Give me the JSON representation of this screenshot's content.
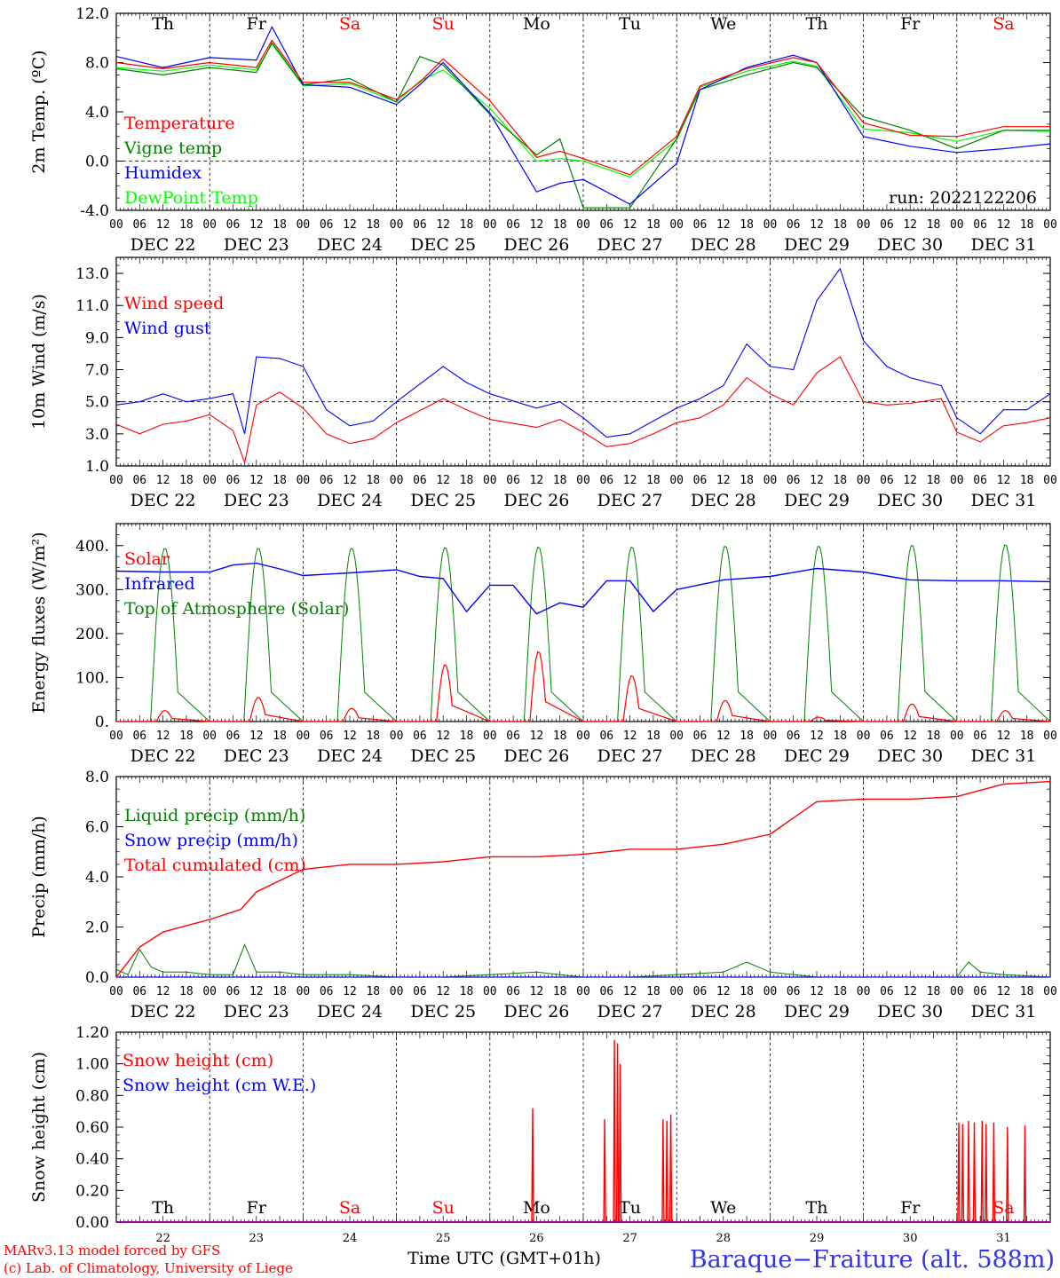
{
  "title": "Baraque−Fraiture (alt. 588m)",
  "credits": [
    "MARv3.13 model forced by GFS",
    "(c) Lab. of Climatology, University of Liege"
  ],
  "x_axis_title": "Time UTC (GMT+01h)",
  "run_label": "run: 2022122206",
  "day_names": [
    "Th",
    "Fr",
    "Sa",
    "Su",
    "Mo",
    "Tu",
    "We",
    "Th",
    "Fr",
    "Sa"
  ],
  "weekend_flags": [
    false,
    false,
    true,
    true,
    false,
    false,
    false,
    false,
    false,
    true
  ],
  "date_labels": [
    "DEC 22",
    "DEC 23",
    "DEC 24",
    "DEC 25",
    "DEC 26",
    "DEC 27",
    "DEC 28",
    "DEC 29",
    "DEC 30",
    "DEC 31"
  ],
  "day_numbers": [
    "22",
    "23",
    "24",
    "25",
    "26",
    "27",
    "28",
    "29",
    "30",
    "31"
  ],
  "hour_ticks": [
    "00",
    "06",
    "12",
    "18"
  ],
  "colors": {
    "red": "#ff0000",
    "green": "#008000",
    "blue": "#0000ff",
    "light_green": "#00ff00",
    "purple": "#a000a0"
  },
  "chart_data": [
    {
      "type": "line",
      "ylabel": "2m Temp. (ºC)",
      "ylim": [
        -4,
        12
      ],
      "ytick_labels": [
        "-4.0",
        "0.0",
        "4.0",
        "8.0",
        "12.0"
      ],
      "reference_line": 0,
      "x_unit": "hours since DEC 22 00 UTC",
      "series": [
        {
          "name": "Temperature",
          "color": "#ff0000",
          "x": [
            0,
            12,
            24,
            36,
            40,
            48,
            60,
            72,
            78,
            84,
            96,
            108,
            114,
            120,
            132,
            144,
            150,
            162,
            174,
            180,
            192,
            204,
            216,
            228,
            240
          ],
          "values": [
            8.0,
            7.5,
            8.0,
            7.6,
            9.8,
            6.4,
            6.4,
            5.0,
            6.4,
            8.3,
            4.9,
            0.3,
            0.8,
            0.2,
            -1.1,
            2.0,
            6.1,
            7.5,
            8.4,
            8.0,
            3.1,
            2.1,
            2.0,
            2.8,
            2.8
          ]
        },
        {
          "name": "Vigne temp",
          "color": "#008000",
          "x": [
            0,
            12,
            24,
            36,
            40,
            48,
            60,
            72,
            78,
            84,
            96,
            108,
            114,
            120,
            132,
            144,
            150,
            162,
            174,
            180,
            192,
            204,
            216,
            228,
            240
          ],
          "values": [
            7.5,
            7.0,
            7.6,
            7.2,
            9.6,
            6.2,
            6.7,
            4.8,
            8.5,
            7.8,
            3.8,
            0.5,
            1.8,
            -3.8,
            -3.8,
            1.8,
            5.8,
            7.0,
            8.0,
            7.6,
            3.6,
            2.5,
            1.0,
            2.5,
            2.5
          ]
        },
        {
          "name": "Humidex",
          "color": "#0000ff",
          "x": [
            0,
            12,
            24,
            36,
            40,
            48,
            60,
            72,
            78,
            84,
            96,
            108,
            114,
            120,
            132,
            144,
            150,
            162,
            174,
            180,
            192,
            204,
            216,
            228,
            240
          ],
          "values": [
            8.5,
            7.6,
            8.4,
            8.2,
            10.9,
            6.2,
            6.0,
            4.6,
            6.2,
            8.0,
            3.9,
            -2.5,
            -1.8,
            -1.5,
            -3.5,
            -0.2,
            5.8,
            7.6,
            8.6,
            8.0,
            2.0,
            1.2,
            0.7,
            1.0,
            1.4
          ]
        },
        {
          "name": "DewPoint Temp",
          "color": "#00ff00",
          "x": [
            0,
            12,
            24,
            36,
            40,
            48,
            60,
            72,
            78,
            84,
            96,
            108,
            114,
            120,
            132,
            144,
            150,
            162,
            174,
            180,
            192,
            204,
            216,
            228,
            240
          ],
          "values": [
            7.6,
            7.3,
            7.8,
            7.4,
            9.5,
            6.1,
            6.3,
            4.8,
            6.5,
            7.4,
            4.3,
            0.0,
            0.2,
            0.0,
            -1.3,
            1.7,
            6.0,
            7.3,
            8.1,
            7.7,
            2.6,
            2.3,
            1.6,
            2.5,
            2.4
          ]
        }
      ]
    },
    {
      "type": "line",
      "ylabel": "10m Wind (m/s)",
      "ylim": [
        1,
        14
      ],
      "ytick_labels": [
        "1.0",
        "3.0",
        "5.0",
        "7.0",
        "9.0",
        "11.0",
        "13.0"
      ],
      "reference_line": 5,
      "x_unit": "hours since DEC 22 00 UTC",
      "series": [
        {
          "name": "Wind speed",
          "color": "#ff0000",
          "x": [
            0,
            6,
            12,
            18,
            24,
            30,
            33,
            36,
            42,
            48,
            54,
            60,
            66,
            72,
            84,
            90,
            96,
            108,
            114,
            120,
            126,
            132,
            138,
            144,
            150,
            156,
            162,
            168,
            174,
            180,
            186,
            192,
            198,
            204,
            212,
            216,
            222,
            228,
            234,
            240
          ],
          "values": [
            3.6,
            3.0,
            3.6,
            3.8,
            4.2,
            3.2,
            1.2,
            4.8,
            5.6,
            4.6,
            3.0,
            2.4,
            2.7,
            3.7,
            5.2,
            4.5,
            3.9,
            3.4,
            3.9,
            3.1,
            2.2,
            2.4,
            3.0,
            3.7,
            4.0,
            4.8,
            6.5,
            5.5,
            4.8,
            6.8,
            7.8,
            5.0,
            4.8,
            4.9,
            5.2,
            3.1,
            2.5,
            3.5,
            3.7,
            4.0
          ]
        },
        {
          "name": "Wind gust",
          "color": "#0000ff",
          "x": [
            0,
            6,
            12,
            18,
            24,
            30,
            33,
            36,
            42,
            48,
            54,
            60,
            66,
            72,
            84,
            90,
            96,
            108,
            114,
            120,
            126,
            132,
            138,
            144,
            150,
            156,
            162,
            168,
            174,
            180,
            186,
            192,
            198,
            204,
            212,
            216,
            222,
            228,
            234,
            240
          ],
          "values": [
            4.8,
            5.0,
            5.5,
            5.0,
            5.2,
            5.5,
            3.0,
            7.8,
            7.7,
            7.2,
            4.5,
            3.5,
            3.8,
            5.0,
            7.2,
            6.2,
            5.5,
            4.6,
            5.0,
            4.0,
            2.8,
            3.0,
            3.8,
            4.6,
            5.2,
            6.0,
            8.6,
            7.2,
            7.0,
            11.3,
            13.3,
            8.8,
            7.2,
            6.5,
            6.0,
            4.0,
            3.0,
            4.5,
            4.5,
            5.5
          ]
        }
      ]
    },
    {
      "type": "line",
      "ylabel": "Energy fluxes (W/m²)",
      "ylim": [
        0,
        450
      ],
      "ytick_labels": [
        "0.",
        "100.",
        "200.",
        "300.",
        "400."
      ],
      "x_unit": "hours since DEC 22 00 UTC",
      "series": [
        {
          "name": "Solar",
          "color": "#ff0000",
          "day_peaks": [
            25,
            55,
            30,
            130,
            160,
            105,
            48,
            10,
            40,
            25
          ]
        },
        {
          "name": "Infrared",
          "color": "#0000ff",
          "x": [
            0,
            12,
            24,
            30,
            36,
            42,
            48,
            60,
            72,
            78,
            84,
            90,
            96,
            102,
            108,
            114,
            120,
            126,
            132,
            138,
            144,
            156,
            168,
            180,
            192,
            204,
            216,
            228,
            240
          ],
          "values": [
            342,
            340,
            340,
            356,
            360,
            347,
            332,
            338,
            345,
            330,
            325,
            250,
            310,
            310,
            245,
            270,
            260,
            320,
            320,
            250,
            300,
            322,
            330,
            348,
            340,
            322,
            320,
            320,
            318
          ]
        },
        {
          "name": "Top of Atmosphere (Solar)",
          "color": "#008000",
          "day_peaks": [
            395,
            395,
            395,
            397,
            398,
            398,
            400,
            400,
            402,
            403
          ]
        }
      ]
    },
    {
      "type": "line",
      "ylabel": "Precip (mm/h)",
      "ylim": [
        0,
        8
      ],
      "ytick_labels": [
        "0.0",
        "2.0",
        "4.0",
        "6.0",
        "8.0"
      ],
      "x_unit": "hours since DEC 22 00 UTC",
      "series": [
        {
          "name": "Liquid precip (mm/h)",
          "color": "#008000",
          "x": [
            0,
            3,
            6,
            9,
            12,
            18,
            24,
            30,
            33,
            36,
            42,
            48,
            60,
            72,
            84,
            96,
            108,
            120,
            132,
            144,
            156,
            162,
            168,
            180,
            192,
            204,
            216,
            219,
            222,
            228,
            240
          ],
          "values": [
            0.3,
            0.1,
            1.1,
            0.4,
            0.2,
            0.2,
            0.1,
            0.1,
            1.3,
            0.2,
            0.2,
            0.1,
            0.1,
            0.0,
            0.0,
            0.1,
            0.2,
            0.0,
            0.0,
            0.1,
            0.2,
            0.6,
            0.2,
            0.0,
            0.0,
            0.0,
            0.0,
            0.6,
            0.2,
            0.1,
            0.0
          ]
        },
        {
          "name": "Snow precip (mm/h)",
          "color": "#0000ff",
          "x": [
            0,
            240
          ],
          "values": [
            0.0,
            0.0
          ]
        },
        {
          "name": "Total cumulated (cm)",
          "color": "#ff0000",
          "x": [
            0,
            6,
            12,
            24,
            32,
            36,
            48,
            60,
            72,
            84,
            96,
            108,
            120,
            132,
            144,
            156,
            168,
            180,
            192,
            204,
            216,
            228,
            240
          ],
          "values": [
            0.0,
            1.2,
            1.8,
            2.3,
            2.7,
            3.4,
            4.3,
            4.5,
            4.5,
            4.6,
            4.8,
            4.8,
            4.9,
            5.1,
            5.1,
            5.3,
            5.7,
            7.0,
            7.1,
            7.1,
            7.2,
            7.7,
            7.8
          ]
        }
      ]
    },
    {
      "type": "line",
      "ylabel": "Snow height (cm)",
      "ylim": [
        0,
        1.2
      ],
      "ytick_labels": [
        "0.00",
        "0.20",
        "0.40",
        "0.60",
        "0.80",
        "1.00",
        "1.20"
      ],
      "x_unit": "hours since DEC 22 00 UTC",
      "series": [
        {
          "name": "Snow height (cm)",
          "color": "#ff0000",
          "spikes": [
            [
              107,
              0.72
            ],
            [
              125.5,
              0.65
            ],
            [
              128,
              1.15
            ],
            [
              128.8,
              1.13
            ],
            [
              129.5,
              1.0
            ],
            [
              140.5,
              0.65
            ],
            [
              141.5,
              0.64
            ],
            [
              142.5,
              0.68
            ],
            [
              216.5,
              0.63
            ],
            [
              217.5,
              0.62
            ],
            [
              219,
              0.64
            ],
            [
              220.5,
              0.63
            ],
            [
              222.5,
              0.64
            ],
            [
              223.5,
              0.62
            ],
            [
              225.5,
              0.63
            ],
            [
              229,
              0.6
            ],
            [
              233.5,
              0.61
            ]
          ]
        },
        {
          "name": "Snow height (cm W.E.)",
          "color": "#0000ff",
          "x": [
            0,
            240
          ],
          "values": [
            0.0,
            0.0
          ]
        }
      ]
    }
  ]
}
